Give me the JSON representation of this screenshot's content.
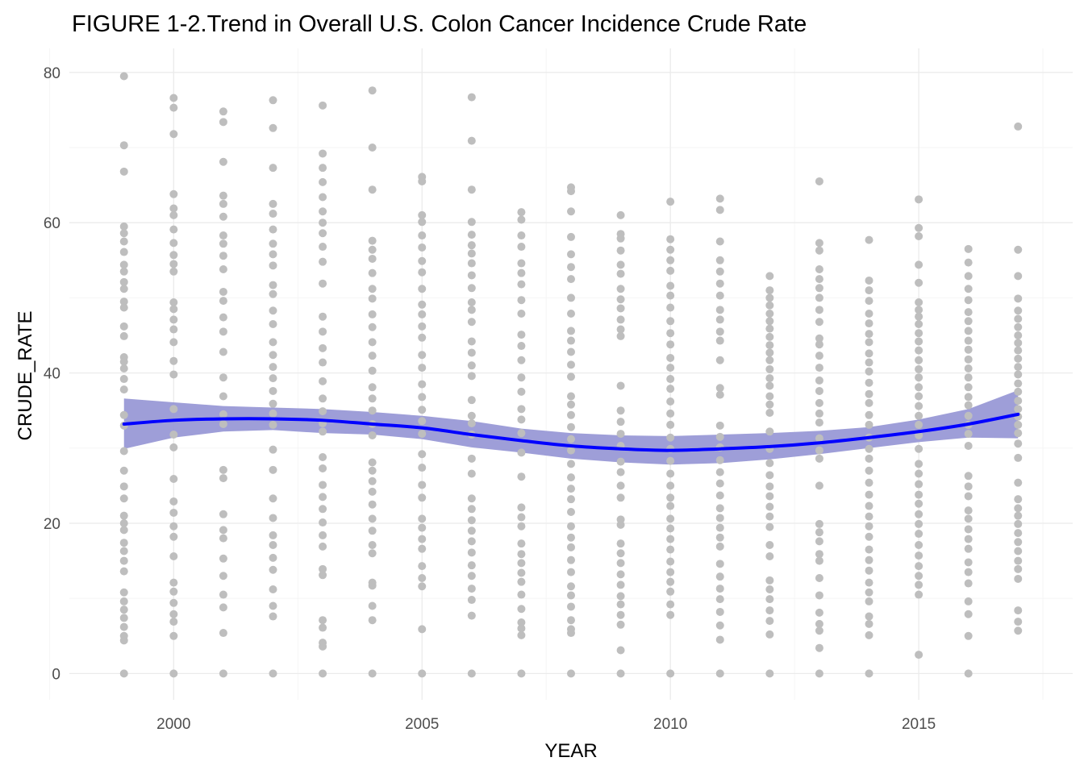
{
  "chart_data": {
    "type": "scatter",
    "title": "FIGURE 1-2.Trend in Overall U.S. Colon Cancer Incidence Crude Rate",
    "xlabel": "YEAR",
    "ylabel": "CRUDE_RATE",
    "xlim": [
      1997.9,
      2018.1
    ],
    "ylim": [
      -3.5,
      83.2
    ],
    "x_ticks": [
      2000,
      2005,
      2010,
      2015
    ],
    "y_ticks": [
      0,
      20,
      40,
      60,
      80
    ],
    "grid": true,
    "legend": "none",
    "colors": {
      "points": "#bebebe",
      "trend_line": "#0000ff",
      "confidence_band": "#9999d6"
    },
    "points": [
      {
        "x": 1999,
        "y": [
          79.5,
          70.3,
          66.8,
          59.5,
          58.6,
          57.5,
          56.1,
          54.4,
          53.5,
          52.1,
          51.2,
          49.5,
          48.7,
          46.2,
          44.9,
          42.1,
          41.5,
          40.6,
          39.2,
          37.8,
          34.4,
          33.0,
          29.6,
          27.0,
          24.9,
          23.3,
          21.0,
          20.0,
          19.1,
          17.4,
          16.3,
          15.0,
          13.6,
          10.8,
          9.6,
          8.5,
          7.4,
          6.2,
          5.0,
          4.4,
          0.0
        ]
      },
      {
        "x": 2000,
        "y": [
          76.6,
          75.3,
          71.8,
          63.8,
          61.9,
          61.0,
          59.1,
          57.3,
          55.7,
          54.5,
          53.5,
          49.4,
          48.5,
          47.1,
          45.8,
          44.1,
          41.6,
          39.8,
          35.2,
          31.8,
          30.1,
          25.9,
          22.9,
          21.4,
          19.6,
          18.2,
          15.6,
          12.1,
          10.9,
          9.4,
          7.9,
          6.9,
          5.0,
          0.0
        ]
      },
      {
        "x": 2001,
        "y": [
          74.8,
          73.4,
          68.1,
          63.6,
          62.5,
          60.8,
          58.3,
          57.2,
          55.6,
          53.8,
          50.8,
          49.6,
          47.4,
          45.5,
          42.8,
          39.4,
          36.9,
          34.5,
          33.2,
          27.1,
          26.0,
          21.2,
          19.1,
          18.0,
          15.3,
          13.0,
          10.5,
          8.8,
          5.4,
          0.0
        ]
      },
      {
        "x": 2002,
        "y": [
          76.3,
          72.6,
          67.3,
          62.5,
          61.2,
          59.1,
          57.2,
          55.8,
          54.3,
          51.7,
          50.5,
          48.3,
          46.5,
          44.1,
          42.4,
          40.8,
          39.3,
          37.6,
          35.9,
          34.6,
          33.1,
          29.8,
          27.1,
          23.3,
          20.7,
          18.4,
          17.1,
          15.4,
          13.8,
          11.2,
          9.0,
          7.6,
          0.0
        ]
      },
      {
        "x": 2003,
        "y": [
          75.6,
          69.2,
          67.3,
          65.4,
          63.4,
          61.5,
          60.0,
          58.6,
          56.8,
          54.8,
          51.9,
          47.5,
          45.5,
          43.3,
          41.4,
          38.9,
          36.6,
          34.9,
          33.3,
          32.2,
          28.8,
          27.3,
          25.1,
          23.5,
          21.9,
          20.1,
          18.4,
          16.9,
          13.9,
          13.1,
          7.1,
          6.1,
          4.1,
          3.6,
          0.0
        ]
      },
      {
        "x": 2004,
        "y": [
          77.6,
          70.0,
          64.4,
          57.6,
          56.4,
          55.2,
          53.3,
          51.2,
          49.9,
          47.8,
          46.1,
          44.1,
          42.3,
          40.3,
          38.1,
          36.6,
          35.0,
          33.2,
          31.7,
          28.1,
          27.0,
          25.6,
          24.2,
          22.5,
          20.6,
          19.0,
          17.1,
          16.0,
          12.1,
          11.7,
          9.0,
          7.1,
          0.0
        ]
      },
      {
        "x": 2005,
        "y": [
          66.1,
          65.5,
          61.0,
          60.1,
          58.3,
          56.7,
          54.9,
          53.4,
          51.2,
          49.1,
          47.8,
          46.2,
          44.7,
          42.4,
          40.7,
          38.5,
          36.8,
          35.1,
          33.6,
          31.9,
          29.2,
          27.4,
          25.1,
          23.4,
          20.6,
          19.4,
          17.9,
          16.6,
          14.3,
          12.7,
          11.6,
          5.9,
          0.0
        ]
      },
      {
        "x": 2006,
        "y": [
          76.7,
          70.9,
          64.4,
          60.1,
          58.4,
          57.0,
          55.9,
          54.6,
          53.0,
          51.3,
          49.4,
          48.4,
          46.8,
          44.2,
          42.7,
          41.0,
          39.6,
          36.4,
          34.3,
          33.3,
          31.8,
          28.6,
          26.6,
          23.3,
          21.9,
          20.4,
          19.0,
          17.6,
          16.1,
          14.4,
          13.0,
          11.3,
          9.8,
          7.7,
          0.0
        ]
      },
      {
        "x": 2007,
        "y": [
          61.4,
          60.4,
          58.3,
          56.8,
          54.6,
          53.3,
          51.8,
          49.7,
          47.9,
          45.1,
          43.6,
          41.7,
          39.4,
          37.5,
          35.2,
          33.8,
          32.0,
          29.4,
          26.2,
          22.1,
          20.8,
          19.6,
          17.3,
          15.9,
          14.7,
          13.4,
          12.2,
          10.5,
          8.6,
          6.8,
          6.0,
          5.1,
          0.0
        ]
      },
      {
        "x": 2008,
        "y": [
          64.7,
          64.2,
          61.5,
          58.1,
          55.8,
          54.1,
          52.5,
          50.0,
          47.9,
          45.6,
          44.3,
          42.8,
          41.1,
          39.5,
          36.9,
          35.8,
          34.4,
          32.8,
          31.2,
          29.7,
          27.9,
          26.1,
          24.6,
          23.2,
          21.5,
          19.6,
          18.1,
          16.8,
          15.1,
          13.5,
          11.6,
          10.4,
          8.9,
          7.1,
          5.9,
          5.4,
          0.0
        ]
      },
      {
        "x": 2009,
        "y": [
          61.0,
          58.5,
          57.9,
          56.3,
          54.4,
          53.2,
          51.2,
          49.8,
          48.6,
          47.1,
          45.8,
          44.9,
          38.3,
          35.0,
          33.5,
          31.9,
          30.3,
          28.2,
          26.8,
          25.0,
          23.4,
          20.5,
          19.8,
          17.3,
          16.0,
          14.7,
          13.2,
          11.8,
          10.3,
          9.2,
          7.8,
          6.5,
          3.1,
          0.0
        ]
      },
      {
        "x": 2010,
        "y": [
          62.8,
          57.8,
          56.4,
          55.0,
          53.6,
          51.6,
          50.3,
          48.7,
          46.9,
          45.3,
          43.8,
          42.0,
          40.7,
          39.2,
          37.9,
          36.2,
          34.6,
          33.1,
          31.4,
          29.9,
          28.3,
          26.6,
          25.0,
          23.4,
          22.3,
          20.6,
          19.3,
          17.9,
          16.5,
          14.9,
          13.5,
          12.2,
          10.9,
          9.2,
          7.8,
          0.0
        ]
      },
      {
        "x": 2011,
        "y": [
          63.2,
          61.7,
          57.5,
          55.0,
          53.5,
          51.9,
          50.3,
          48.4,
          47.1,
          45.5,
          44.3,
          41.7,
          38.0,
          37.1,
          33.0,
          31.5,
          30.1,
          28.4,
          26.8,
          25.3,
          23.7,
          22.0,
          20.7,
          19.4,
          18.1,
          16.9,
          14.6,
          12.9,
          11.3,
          9.9,
          8.2,
          6.4,
          4.5,
          0.0
        ]
      },
      {
        "x": 2012,
        "y": [
          52.9,
          51.0,
          50.0,
          49.0,
          47.9,
          46.9,
          45.9,
          44.8,
          43.7,
          42.7,
          41.7,
          40.5,
          39.3,
          38.3,
          36.9,
          35.8,
          34.7,
          32.2,
          29.9,
          28.0,
          26.4,
          24.9,
          23.6,
          22.2,
          20.9,
          19.5,
          17.1,
          15.6,
          12.4,
          11.2,
          9.9,
          8.4,
          7.0,
          5.2,
          0.0
        ]
      },
      {
        "x": 2013,
        "y": [
          65.5,
          57.3,
          56.3,
          53.8,
          52.5,
          51.3,
          50.0,
          48.4,
          46.8,
          44.6,
          43.8,
          42.3,
          40.7,
          39.0,
          37.6,
          36.0,
          34.6,
          33.4,
          31.3,
          29.7,
          28.6,
          25.0,
          19.9,
          18.8,
          17.6,
          15.9,
          15.0,
          12.7,
          10.4,
          8.1,
          6.6,
          5.7,
          3.4,
          0.0
        ]
      },
      {
        "x": 2014,
        "y": [
          57.7,
          52.3,
          51.0,
          49.6,
          47.9,
          46.6,
          45.2,
          44.1,
          42.6,
          41.4,
          40.2,
          38.7,
          37.2,
          36.0,
          34.4,
          33.1,
          31.4,
          29.9,
          28.6,
          27.0,
          25.4,
          23.8,
          22.3,
          20.9,
          19.6,
          18.2,
          16.5,
          15.1,
          13.7,
          12.1,
          10.8,
          9.6,
          7.6,
          6.6,
          5.1,
          0.0
        ]
      },
      {
        "x": 2015,
        "y": [
          63.1,
          59.3,
          58.2,
          54.4,
          52.0,
          49.4,
          48.4,
          47.5,
          46.5,
          45.3,
          44.2,
          43.0,
          41.7,
          40.5,
          39.4,
          38.1,
          36.9,
          35.6,
          34.3,
          33.1,
          31.7,
          29.9,
          27.9,
          26.6,
          25.2,
          23.8,
          22.6,
          21.2,
          19.9,
          18.6,
          17.1,
          15.7,
          14.3,
          13.0,
          11.8,
          10.5,
          2.5
        ]
      },
      {
        "x": 2016,
        "y": [
          56.5,
          54.7,
          52.9,
          51.2,
          49.7,
          48.1,
          46.9,
          45.6,
          44.3,
          43.1,
          41.8,
          40.6,
          39.4,
          38.1,
          36.8,
          35.7,
          34.3,
          33.1,
          31.9,
          30.3,
          26.3,
          24.9,
          23.6,
          21.7,
          20.6,
          19.2,
          17.9,
          16.6,
          14.8,
          13.5,
          12.0,
          9.6,
          7.9,
          5.0,
          0.0
        ]
      },
      {
        "x": 2017,
        "y": [
          72.8,
          56.4,
          52.9,
          49.9,
          48.3,
          47.2,
          46.1,
          45.0,
          44.0,
          43.0,
          41.9,
          40.8,
          39.8,
          38.6,
          37.5,
          36.3,
          35.2,
          34.2,
          33.1,
          32.0,
          30.6,
          28.7,
          25.4,
          23.2,
          22.0,
          21.0,
          19.9,
          18.7,
          17.5,
          16.3,
          15.0,
          13.9,
          12.6,
          8.4,
          6.9,
          5.7
        ]
      }
    ],
    "trend": {
      "x": [
        1999,
        2000,
        2001,
        2002,
        2003,
        2004,
        2005,
        2006,
        2007,
        2008,
        2009,
        2010,
        2011,
        2012,
        2013,
        2014,
        2015,
        2016,
        2017
      ],
      "y": [
        33.2,
        33.7,
        33.9,
        33.9,
        33.7,
        33.2,
        32.7,
        31.8,
        31.0,
        30.3,
        29.9,
        29.7,
        29.9,
        30.2,
        30.7,
        31.4,
        32.2,
        33.2,
        34.5
      ],
      "lower": [
        29.9,
        31.4,
        32.2,
        32.4,
        32.0,
        31.8,
        31.2,
        30.1,
        29.4,
        28.6,
        28.1,
        27.8,
        28.0,
        28.5,
        29.2,
        30.0,
        30.8,
        31.4,
        31.3
      ],
      "upper": [
        36.6,
        36.1,
        35.6,
        35.4,
        35.2,
        34.8,
        34.3,
        33.6,
        32.6,
        32.0,
        31.7,
        31.6,
        31.8,
        32.0,
        32.3,
        32.8,
        33.8,
        35.2,
        37.7
      ]
    }
  }
}
